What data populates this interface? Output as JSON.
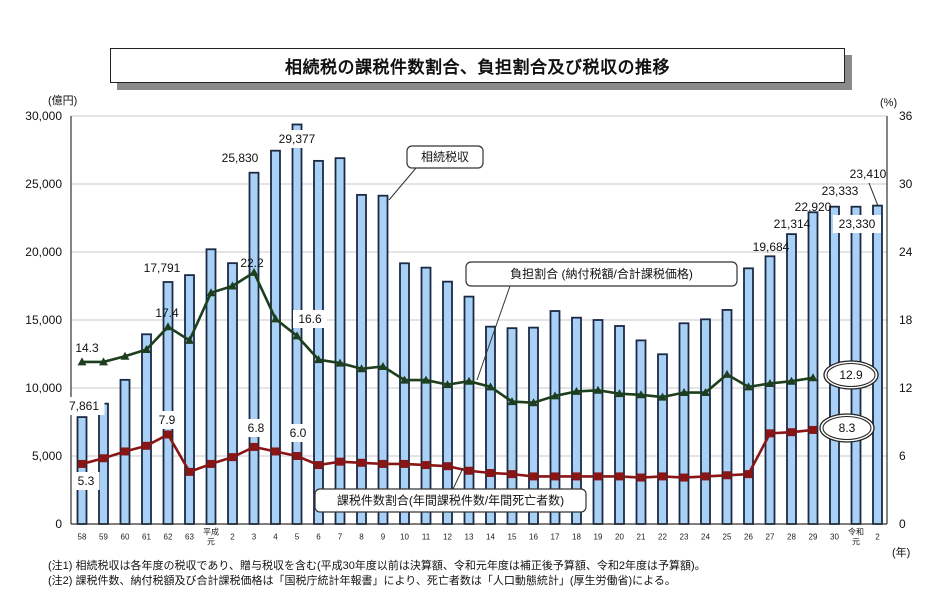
{
  "title": "相続税の課税件数割合、負担割合及び税収の推移",
  "notes": [
    "(注1) 相続税収は各年度の税収であり、贈与税収を含む(平成30年度以前は決算額、令和元年度は補正後予算額、令和2年度は予算額)。",
    "(注2) 課税件数、納付税額及び合計課税価格は「国税庁統計年報書」により、死亡者数は「人口動態統計」(厚生労働省)による。"
  ],
  "colors": {
    "bar_fill": "#a9d1f5",
    "bar_edge": "#1b2a44",
    "burden_line": "#1e3f1e",
    "taxable_line": "#8a1515",
    "grid": "#c9c9c9"
  },
  "chart_data": {
    "type": "bar",
    "title": "相続税の課税件数割合、負担割合及び税収の推移",
    "xlabel": "(年)",
    "ylabel": "(億円)",
    "y2label": "(%)",
    "ylim": [
      0,
      30000
    ],
    "y2lim": [
      0,
      36
    ],
    "yticks": [
      "0",
      "5,000",
      "10,000",
      "15,000",
      "20,000",
      "25,000",
      "30,000"
    ],
    "y2ticks": [
      "0",
      "6",
      "12",
      "18",
      "24",
      "30",
      "36"
    ],
    "grid": true,
    "categories": [
      "58",
      "59",
      "60",
      "61",
      "62",
      "63",
      "平成|元",
      "2",
      "3",
      "4",
      "5",
      "6",
      "7",
      "8",
      "9",
      "10",
      "11",
      "12",
      "13",
      "14",
      "15",
      "16",
      "17",
      "18",
      "19",
      "20",
      "21",
      "22",
      "23",
      "24",
      "25",
      "26",
      "27",
      "28",
      "29",
      "30",
      "令和|元",
      "2"
    ],
    "series": [
      {
        "name": "相続税収",
        "axis": "left",
        "kind": "bar",
        "values": [
          7861,
          8850,
          10600,
          13950,
          17791,
          18300,
          20200,
          19180,
          25830,
          27450,
          29377,
          26700,
          26900,
          24200,
          24140,
          19170,
          18850,
          17820,
          16720,
          14510,
          14400,
          14440,
          15660,
          15170,
          15000,
          14560,
          13500,
          12480,
          14760,
          15050,
          15740,
          18800,
          19684,
          21314,
          22920,
          23333,
          23330,
          23410
        ]
      },
      {
        "name": "負担割合 (納付税額/合計課税価格)",
        "axis": "right",
        "kind": "line",
        "marker": "triangle",
        "values": [
          14.3,
          14.3,
          14.8,
          15.4,
          17.4,
          16.2,
          20.4,
          21.0,
          22.2,
          18.1,
          16.6,
          14.5,
          14.2,
          13.7,
          13.9,
          12.7,
          12.7,
          12.3,
          12.6,
          12.1,
          10.8,
          10.7,
          11.3,
          11.7,
          11.8,
          11.5,
          11.4,
          11.2,
          11.6,
          11.6,
          13.2,
          12.1,
          12.4,
          12.6,
          12.9
        ]
      },
      {
        "name": "課税件数割合(年間課税件数/年間死亡者数)",
        "axis": "right",
        "kind": "line",
        "marker": "square",
        "values": [
          5.3,
          5.8,
          6.4,
          6.9,
          7.9,
          4.6,
          5.3,
          5.9,
          6.8,
          6.4,
          6.0,
          5.2,
          5.5,
          5.4,
          5.3,
          5.3,
          5.2,
          5.1,
          4.7,
          4.5,
          4.4,
          4.2,
          4.2,
          4.2,
          4.2,
          4.2,
          4.1,
          4.2,
          4.1,
          4.2,
          4.3,
          4.4,
          8.0,
          8.1,
          8.3
        ]
      }
    ],
    "annotations": [
      {
        "series": 0,
        "index": 0,
        "text": "7,861"
      },
      {
        "series": 0,
        "index": 4,
        "text": "17,791"
      },
      {
        "series": 0,
        "index": 8,
        "text": "25,830"
      },
      {
        "series": 0,
        "index": 10,
        "text": "29,377"
      },
      {
        "series": 0,
        "index": 32,
        "text": "19,684"
      },
      {
        "series": 0,
        "index": 33,
        "text": "21,314"
      },
      {
        "series": 0,
        "index": 34,
        "text": "22,920"
      },
      {
        "series": 0,
        "index": 35,
        "text": "23,333"
      },
      {
        "series": 0,
        "index": 36,
        "text": "23,330"
      },
      {
        "series": 0,
        "index": 37,
        "text": "23,410"
      },
      {
        "series": 1,
        "index": 0,
        "text": "14.3"
      },
      {
        "series": 1,
        "index": 4,
        "text": "17.4"
      },
      {
        "series": 1,
        "index": 8,
        "text": "22.2"
      },
      {
        "series": 1,
        "index": 10,
        "text": "16.6"
      },
      {
        "series": 1,
        "index": 34,
        "text": "12.9"
      },
      {
        "series": 2,
        "index": 0,
        "text": "5.3"
      },
      {
        "series": 2,
        "index": 4,
        "text": "7.9"
      },
      {
        "series": 2,
        "index": 8,
        "text": "6.8"
      },
      {
        "series": 2,
        "index": 10,
        "text": "6.0"
      },
      {
        "series": 2,
        "index": 34,
        "text": "8.3"
      }
    ],
    "callouts": {
      "revenue": "相続税収",
      "burden": "負担割合 (納付税額/合計課税価格)",
      "taxable": "課税件数割合(年間課税件数/年間死亡者数)"
    }
  }
}
